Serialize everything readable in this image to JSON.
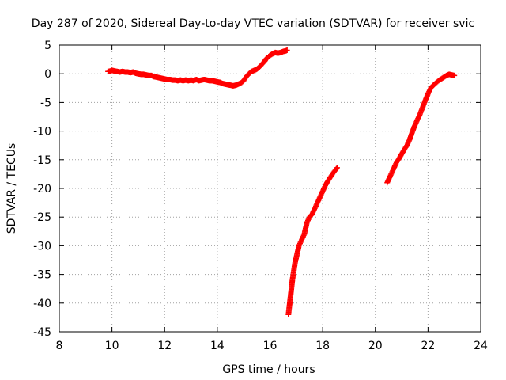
{
  "chart_data": {
    "type": "scatter",
    "title": "Day 287 of 2020, Sidereal Day-to-day VTEC variation (SDTVAR) for receiver svic",
    "xlabel": "GPS time / hours",
    "ylabel": "SDTVAR / TECUs",
    "xlim": [
      8,
      24
    ],
    "ylim": [
      -45,
      5
    ],
    "xticks": [
      8,
      10,
      12,
      14,
      16,
      18,
      20,
      22,
      24
    ],
    "yticks": [
      5,
      0,
      -5,
      -10,
      -15,
      -20,
      -25,
      -30,
      -35,
      -40,
      -45
    ],
    "grid": true,
    "legend": "none",
    "marker": "+",
    "colors": {
      "series": "#ff0000",
      "grid": "#a0a0a0",
      "axis": "#000000"
    },
    "series": [
      {
        "points": [
          [
            9.85,
            0.4
          ],
          [
            9.95,
            0.5
          ],
          [
            10.0,
            0.6
          ],
          [
            10.1,
            0.5
          ],
          [
            10.2,
            0.4
          ],
          [
            10.3,
            0.3
          ],
          [
            10.4,
            0.4
          ],
          [
            10.5,
            0.3
          ],
          [
            10.6,
            0.3
          ],
          [
            10.7,
            0.2
          ],
          [
            10.8,
            0.3
          ],
          [
            10.9,
            0.1
          ],
          [
            11.0,
            0.0
          ],
          [
            11.1,
            -0.1
          ],
          [
            11.2,
            -0.1
          ],
          [
            11.3,
            -0.2
          ],
          [
            11.4,
            -0.3
          ],
          [
            11.5,
            -0.3
          ],
          [
            11.6,
            -0.5
          ],
          [
            11.7,
            -0.6
          ],
          [
            11.8,
            -0.7
          ],
          [
            11.9,
            -0.8
          ],
          [
            12.0,
            -0.9
          ],
          [
            12.1,
            -1.0
          ],
          [
            12.2,
            -1.0
          ],
          [
            12.3,
            -1.1
          ],
          [
            12.4,
            -1.1
          ],
          [
            12.5,
            -1.2
          ],
          [
            12.6,
            -1.1
          ],
          [
            12.7,
            -1.2
          ],
          [
            12.8,
            -1.1
          ],
          [
            12.9,
            -1.2
          ],
          [
            13.0,
            -1.1
          ],
          [
            13.1,
            -1.2
          ],
          [
            13.2,
            -1.0
          ],
          [
            13.3,
            -1.2
          ],
          [
            13.4,
            -1.1
          ],
          [
            13.5,
            -1.0
          ],
          [
            13.6,
            -1.1
          ],
          [
            13.7,
            -1.2
          ],
          [
            13.8,
            -1.2
          ],
          [
            13.9,
            -1.3
          ],
          [
            14.0,
            -1.4
          ],
          [
            14.1,
            -1.5
          ],
          [
            14.2,
            -1.7
          ],
          [
            14.3,
            -1.8
          ],
          [
            14.4,
            -1.9
          ],
          [
            14.5,
            -2.0
          ],
          [
            14.6,
            -2.1
          ],
          [
            14.7,
            -2.0
          ],
          [
            14.8,
            -1.8
          ],
          [
            14.9,
            -1.6
          ],
          [
            15.0,
            -1.2
          ],
          [
            15.1,
            -0.5
          ],
          [
            15.2,
            0.0
          ],
          [
            15.3,
            0.4
          ],
          [
            15.4,
            0.6
          ],
          [
            15.5,
            0.8
          ],
          [
            15.6,
            1.2
          ],
          [
            15.8,
            2.2
          ],
          [
            15.85,
            2.6
          ],
          [
            15.95,
            3.0
          ],
          [
            16.0,
            3.2
          ],
          [
            16.1,
            3.5
          ],
          [
            16.2,
            3.7
          ],
          [
            16.3,
            3.6
          ],
          [
            16.4,
            3.7
          ],
          [
            16.5,
            3.9
          ],
          [
            16.6,
            4.0
          ],
          [
            16.65,
            4.1
          ]
        ]
      },
      {
        "points": [
          [
            16.7,
            -42.0
          ],
          [
            16.75,
            -40.0
          ],
          [
            16.8,
            -38.0
          ],
          [
            16.85,
            -36.0
          ],
          [
            16.9,
            -34.5
          ],
          [
            16.95,
            -33.0
          ],
          [
            17.0,
            -32.0
          ],
          [
            17.05,
            -31.0
          ],
          [
            17.1,
            -30.0
          ],
          [
            17.2,
            -29.0
          ],
          [
            17.3,
            -28.0
          ],
          [
            17.35,
            -27.0
          ],
          [
            17.4,
            -26.0
          ],
          [
            17.5,
            -25.0
          ],
          [
            17.6,
            -24.5
          ],
          [
            17.7,
            -23.5
          ],
          [
            17.8,
            -22.5
          ],
          [
            17.9,
            -21.5
          ],
          [
            18.0,
            -20.5
          ],
          [
            18.1,
            -19.5
          ],
          [
            18.2,
            -18.7
          ],
          [
            18.3,
            -18.0
          ],
          [
            18.4,
            -17.3
          ],
          [
            18.5,
            -16.7
          ],
          [
            18.55,
            -16.4
          ]
        ]
      },
      {
        "points": [
          [
            20.45,
            -19.0
          ],
          [
            20.5,
            -18.5
          ],
          [
            20.6,
            -17.5
          ],
          [
            20.7,
            -16.5
          ],
          [
            20.8,
            -15.5
          ],
          [
            20.9,
            -14.8
          ],
          [
            21.0,
            -14.0
          ],
          [
            21.1,
            -13.2
          ],
          [
            21.2,
            -12.5
          ],
          [
            21.3,
            -11.5
          ],
          [
            21.4,
            -10.2
          ],
          [
            21.5,
            -9.0
          ],
          [
            21.6,
            -8.0
          ],
          [
            21.7,
            -7.0
          ],
          [
            21.8,
            -5.8
          ],
          [
            21.9,
            -4.6
          ],
          [
            22.0,
            -3.5
          ],
          [
            22.1,
            -2.5
          ],
          [
            22.2,
            -2.0
          ],
          [
            22.3,
            -1.6
          ],
          [
            22.4,
            -1.2
          ],
          [
            22.5,
            -0.9
          ],
          [
            22.6,
            -0.6
          ],
          [
            22.7,
            -0.3
          ],
          [
            22.8,
            -0.1
          ],
          [
            22.9,
            -0.2
          ],
          [
            23.0,
            -0.3
          ]
        ]
      }
    ]
  }
}
